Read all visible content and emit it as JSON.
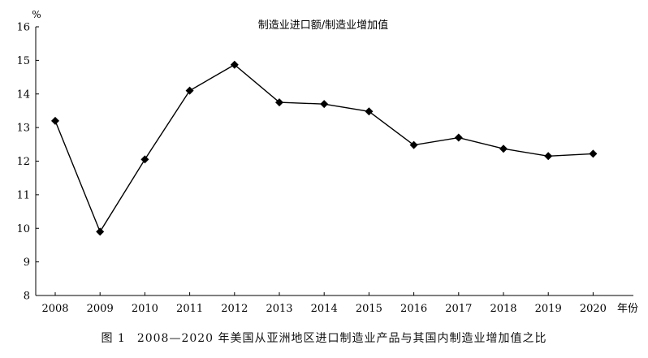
{
  "caption": {
    "figure_label": "图 1",
    "text": "2008—2020 年美国从亚洲地区进口制造业产品与其国内制造业增加值之比"
  },
  "chart_data": {
    "type": "line",
    "title": "制造业进口额/制造业增加值",
    "ylabel": "%",
    "xlabel": "年份",
    "categories": [
      "2008",
      "2009",
      "2010",
      "2011",
      "2012",
      "2013",
      "2014",
      "2015",
      "2016",
      "2017",
      "2018",
      "2019",
      "2020"
    ],
    "series": [
      {
        "values": [
          13.2,
          9.9,
          12.05,
          14.1,
          14.87,
          13.75,
          13.7,
          13.48,
          12.48,
          12.7,
          12.37,
          12.15,
          12.22
        ]
      }
    ],
    "ylim": [
      8,
      16
    ],
    "yticks": [
      "8",
      "9",
      "10",
      "11",
      "12",
      "13",
      "14",
      "15",
      "16"
    ],
    "grid": false,
    "line_color": "#000000",
    "marker": "diamond"
  }
}
